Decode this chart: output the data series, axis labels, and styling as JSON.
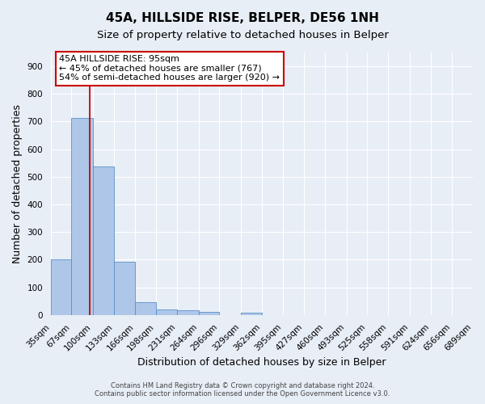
{
  "title": "45A, HILLSIDE RISE, BELPER, DE56 1NH",
  "subtitle": "Size of property relative to detached houses in Belper",
  "xlabel": "Distribution of detached houses by size in Belper",
  "ylabel": "Number of detached properties",
  "footer_line1": "Contains HM Land Registry data © Crown copyright and database right 2024.",
  "footer_line2": "Contains public sector information licensed under the Open Government Licence v3.0.",
  "bin_edges": [
    35,
    67,
    100,
    133,
    166,
    198,
    231,
    264,
    296,
    329,
    362,
    395,
    427,
    460,
    493,
    525,
    558,
    591,
    624,
    656,
    689
  ],
  "bin_labels": [
    "35sqm",
    "67sqm",
    "100sqm",
    "133sqm",
    "166sqm",
    "198sqm",
    "231sqm",
    "264sqm",
    "296sqm",
    "329sqm",
    "362sqm",
    "395sqm",
    "427sqm",
    "460sqm",
    "493sqm",
    "525sqm",
    "558sqm",
    "591sqm",
    "624sqm",
    "656sqm",
    "689sqm"
  ],
  "bar_heights": [
    201,
    714,
    537,
    193,
    46,
    21,
    16,
    10,
    0,
    7,
    0,
    0,
    0,
    0,
    0,
    0,
    0,
    0,
    0,
    0
  ],
  "bar_color": "#aec6e8",
  "bar_edge_color": "#5b8fc9",
  "property_line_x": 95,
  "property_line_color": "#cc0000",
  "ylim": [
    0,
    950
  ],
  "yticks": [
    0,
    100,
    200,
    300,
    400,
    500,
    600,
    700,
    800,
    900
  ],
  "annotation_title": "45A HILLSIDE RISE: 95sqm",
  "annotation_line1": "← 45% of detached houses are smaller (767)",
  "annotation_line2": "54% of semi-detached houses are larger (920) →",
  "annotation_box_color": "#ffffff",
  "annotation_box_edge": "#cc0000",
  "bg_color": "#e8eef6",
  "plot_bg_color": "#e8eef6",
  "grid_color": "#ffffff",
  "title_fontsize": 11,
  "subtitle_fontsize": 9.5,
  "axis_label_fontsize": 9,
  "tick_fontsize": 7.5,
  "annotation_fontsize": 8,
  "footer_fontsize": 6
}
